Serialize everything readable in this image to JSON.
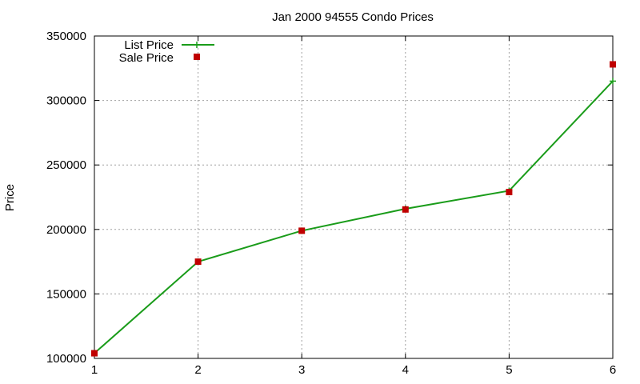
{
  "chart_data": {
    "type": "line",
    "title": "Jan 2000 94555 Condo Prices",
    "xlabel": "",
    "ylabel": "Price",
    "x": [
      1,
      2,
      3,
      4,
      5,
      6
    ],
    "xlim": [
      1,
      6
    ],
    "ylim": [
      100000,
      350000
    ],
    "xticks": [
      "1",
      "2",
      "3",
      "4",
      "5",
      "6"
    ],
    "yticks": [
      "100000",
      "150000",
      "200000",
      "250000",
      "300000",
      "350000"
    ],
    "ytick_values": [
      100000,
      150000,
      200000,
      250000,
      300000,
      350000
    ],
    "grid": true,
    "legend_position": "top-left",
    "series": [
      {
        "name": "List Price",
        "style": "line-with-plus-markers",
        "color": "#1a9c1a",
        "values": [
          104000,
          175000,
          199000,
          216000,
          230000,
          315000
        ]
      },
      {
        "name": "Sale Price",
        "style": "square-markers",
        "color": "#c00000",
        "values": [
          104000,
          175000,
          199000,
          215500,
          229000,
          328000
        ]
      }
    ]
  }
}
